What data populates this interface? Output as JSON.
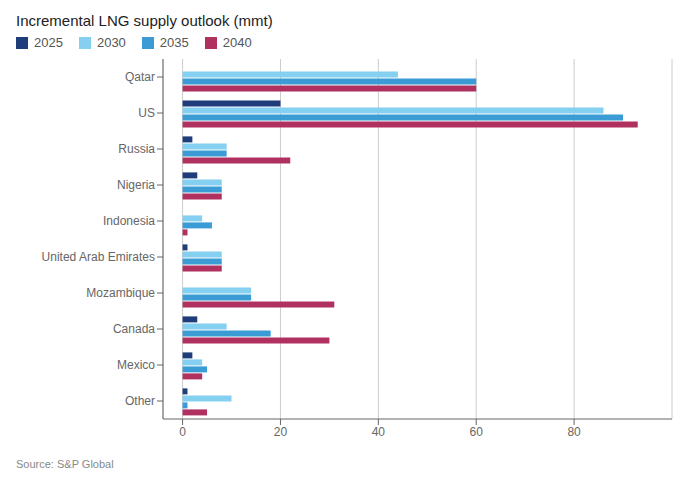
{
  "chart_data": {
    "type": "bar",
    "orientation": "horizontal",
    "title": "Incremental LNG supply outlook (mmt)",
    "categories": [
      "Qatar",
      "US",
      "Russia",
      "Nigeria",
      "Indonesia",
      "United Arab Emirates",
      "Mozambique",
      "Canada",
      "Mexico",
      "Other"
    ],
    "series": [
      {
        "name": "2025",
        "color": "#1f3d7a",
        "values": [
          0,
          20,
          2,
          3,
          0,
          1,
          0,
          3,
          2,
          1
        ]
      },
      {
        "name": "2030",
        "color": "#85d0f0",
        "values": [
          44,
          86,
          9,
          8,
          4,
          8,
          14,
          9,
          4,
          10
        ]
      },
      {
        "name": "2035",
        "color": "#3a9bd5",
        "values": [
          60,
          90,
          9,
          8,
          6,
          8,
          14,
          18,
          5,
          1
        ]
      },
      {
        "name": "2040",
        "color": "#b03060",
        "values": [
          60,
          93,
          22,
          8,
          1,
          8,
          31,
          30,
          4,
          5
        ]
      }
    ],
    "xlim": [
      -4,
      100
    ],
    "xticks": [
      0,
      20,
      40,
      60,
      80
    ],
    "grid": true,
    "legend": "upper left",
    "annotations": [
      "Source: S&P Global"
    ]
  }
}
